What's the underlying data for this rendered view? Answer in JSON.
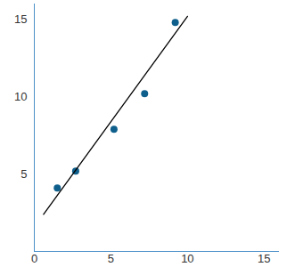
{
  "chart_data": {
    "type": "scatter",
    "series": [
      {
        "type": "scatter",
        "marker": "circle",
        "color": "#0f5f8c",
        "x": [
          1.5,
          2.7,
          5.2,
          7.2,
          9.2
        ],
        "values": [
          4.1,
          5.2,
          7.9,
          10.2,
          14.8
        ]
      },
      {
        "type": "line",
        "line_style": "solid",
        "color": "#000000",
        "x": [
          0.6,
          10
        ],
        "values": [
          2.4,
          15.2
        ]
      }
    ],
    "xlim": [
      0,
      16
    ],
    "xticks": [
      0,
      5,
      10,
      15
    ],
    "ylim": [
      0,
      16
    ],
    "yticks": [
      5,
      10,
      15
    ],
    "grid": false
  }
}
